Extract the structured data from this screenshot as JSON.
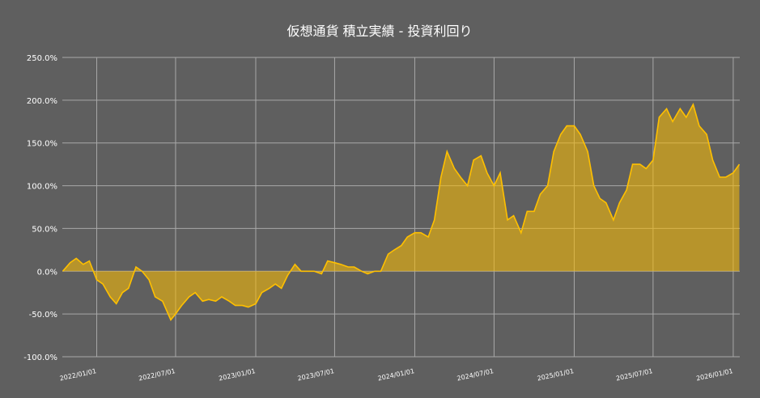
{
  "chart_data": {
    "type": "area",
    "title": "仮想通貨 積立実績 - 投資利回り",
    "color": "#ffc000",
    "grid": true,
    "x": [
      "2021-10-15",
      "2021-11-01",
      "2021-11-15",
      "2021-12-01",
      "2021-12-15",
      "2022-01-01",
      "2022-01-15",
      "2022-02-01",
      "2022-02-15",
      "2022-03-01",
      "2022-03-15",
      "2022-04-01",
      "2022-04-15",
      "2022-05-01",
      "2022-05-15",
      "2022-06-01",
      "2022-06-20",
      "2022-07-01",
      "2022-07-15",
      "2022-08-01",
      "2022-08-15",
      "2022-09-01",
      "2022-09-15",
      "2022-10-01",
      "2022-10-15",
      "2022-11-01",
      "2022-11-15",
      "2022-12-01",
      "2022-12-15",
      "2023-01-01",
      "2023-01-15",
      "2023-02-01",
      "2023-02-15",
      "2023-03-01",
      "2023-03-15",
      "2023-04-01",
      "2023-04-15",
      "2023-05-01",
      "2023-05-15",
      "2023-06-01",
      "2023-06-15",
      "2023-07-01",
      "2023-07-15",
      "2023-08-01",
      "2023-08-15",
      "2023-09-01",
      "2023-09-15",
      "2023-10-01",
      "2023-10-15",
      "2023-11-01",
      "2023-11-15",
      "2023-12-01",
      "2023-12-15",
      "2024-01-01",
      "2024-01-15",
      "2024-02-01",
      "2024-02-15",
      "2024-03-01",
      "2024-03-15",
      "2024-04-01",
      "2024-04-15",
      "2024-05-01",
      "2024-05-15",
      "2024-06-01",
      "2024-06-15",
      "2024-07-01",
      "2024-07-15",
      "2024-08-01",
      "2024-08-15",
      "2024-09-01",
      "2024-09-15",
      "2024-10-01",
      "2024-10-15",
      "2024-11-01",
      "2024-11-15",
      "2024-12-01",
      "2024-12-15",
      "2025-01-01",
      "2025-01-15",
      "2025-02-01",
      "2025-02-15",
      "2025-03-01",
      "2025-03-15",
      "2025-04-01",
      "2025-04-15",
      "2025-05-01",
      "2025-05-15",
      "2025-06-01",
      "2025-06-15",
      "2025-07-01",
      "2025-07-15",
      "2025-08-01",
      "2025-08-15",
      "2025-09-01",
      "2025-09-15",
      "2025-10-01",
      "2025-10-15",
      "2025-11-01",
      "2025-11-15",
      "2025-12-01",
      "2025-12-15",
      "2026-01-01",
      "2026-01-15"
    ],
    "values": [
      0,
      10,
      15,
      8,
      12,
      -10,
      -15,
      -30,
      -38,
      -25,
      -20,
      5,
      0,
      -10,
      -30,
      -35,
      -57,
      -50,
      -40,
      -30,
      -25,
      -35,
      -33,
      -35,
      -30,
      -35,
      -40,
      -40,
      -42,
      -38,
      -25,
      -20,
      -15,
      -20,
      -5,
      8,
      0,
      0,
      0,
      -3,
      12,
      10,
      8,
      5,
      5,
      0,
      -3,
      0,
      0,
      20,
      25,
      30,
      40,
      45,
      45,
      40,
      60,
      110,
      140,
      120,
      110,
      100,
      130,
      135,
      115,
      100,
      115,
      60,
      65,
      45,
      70,
      70,
      90,
      100,
      140,
      160,
      170,
      170,
      160,
      140,
      100,
      85,
      80,
      60,
      80,
      95,
      125,
      125,
      120,
      130,
      180,
      190,
      175,
      190,
      180,
      195,
      170,
      160,
      130,
      110,
      110,
      115,
      125
    ],
    "xlim": [
      "2021-10-14",
      "2026-01-16"
    ],
    "xticks": [
      "2022/01/01",
      "2022/07/01",
      "2023/01/01",
      "2023/07/01",
      "2024/01/01",
      "2024/07/01",
      "2025/01/01",
      "2025/07/01",
      "2026/01/01"
    ],
    "ylim": [
      -100,
      250
    ],
    "yticks": [
      {
        "value": -100,
        "label": "-100.0%"
      },
      {
        "value": -50,
        "label": "-50.0%"
      },
      {
        "value": 0,
        "label": "0.0%"
      },
      {
        "value": 50,
        "label": "50.0%"
      },
      {
        "value": 100,
        "label": "100.0%"
      },
      {
        "value": 150,
        "label": "150.0%"
      },
      {
        "value": 200,
        "label": "200.0%"
      },
      {
        "value": 250,
        "label": "250.0%"
      }
    ]
  }
}
